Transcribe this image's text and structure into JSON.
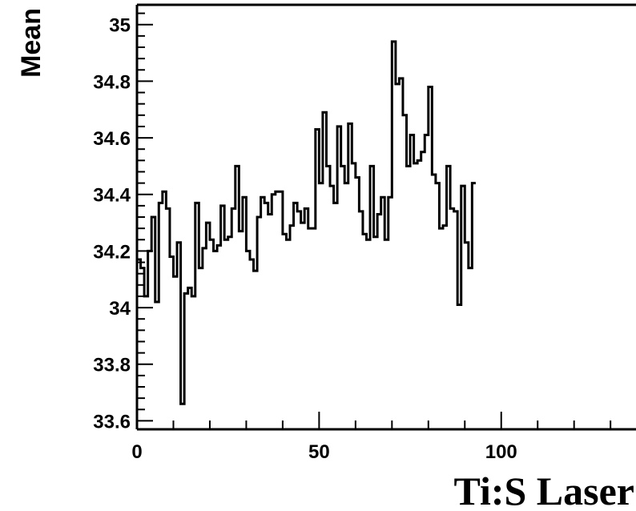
{
  "chart_data": {
    "type": "line",
    "style": "step-histogram",
    "xlabel": "Ti:S Laser",
    "ylabel": "Mean",
    "xlim": [
      0,
      137
    ],
    "ylim": [
      33.57,
      35.07
    ],
    "x_ticks": [
      0,
      50,
      100
    ],
    "x_tick_labels": [
      "0",
      "50",
      "100"
    ],
    "y_ticks": [
      33.6,
      33.8,
      34,
      34.2,
      34.4,
      34.6,
      34.8,
      35
    ],
    "y_tick_labels": [
      "33.6",
      "33.8",
      "34",
      "34.2",
      "34.4",
      "34.6",
      "34.8",
      "35"
    ],
    "grid": false,
    "bin_width": 1,
    "x_start": 0,
    "values": [
      34.17,
      34.14,
      34.04,
      34.2,
      34.32,
      34.02,
      34.37,
      34.41,
      34.35,
      34.18,
      34.11,
      34.23,
      33.66,
      34.05,
      34.07,
      34.04,
      34.37,
      34.14,
      34.21,
      34.3,
      34.24,
      34.2,
      34.22,
      34.36,
      34.24,
      34.25,
      34.35,
      34.5,
      34.27,
      34.39,
      34.2,
      34.17,
      34.13,
      34.32,
      34.39,
      34.37,
      34.33,
      34.4,
      34.41,
      34.41,
      34.26,
      34.24,
      34.29,
      34.37,
      34.34,
      34.3,
      34.35,
      34.28,
      34.28,
      34.63,
      34.44,
      34.69,
      34.5,
      34.43,
      34.37,
      34.64,
      34.5,
      34.44,
      34.65,
      34.51,
      34.46,
      34.34,
      34.26,
      34.24,
      34.5,
      34.25,
      34.33,
      34.39,
      34.24,
      34.39,
      34.94,
      34.79,
      34.81,
      34.68,
      34.5,
      34.61,
      34.51,
      34.52,
      34.55,
      34.61,
      34.78,
      34.47,
      34.44,
      34.28,
      34.29,
      34.5,
      34.35,
      34.34,
      34.01,
      34.43,
      34.23,
      34.14,
      34.44
    ]
  }
}
